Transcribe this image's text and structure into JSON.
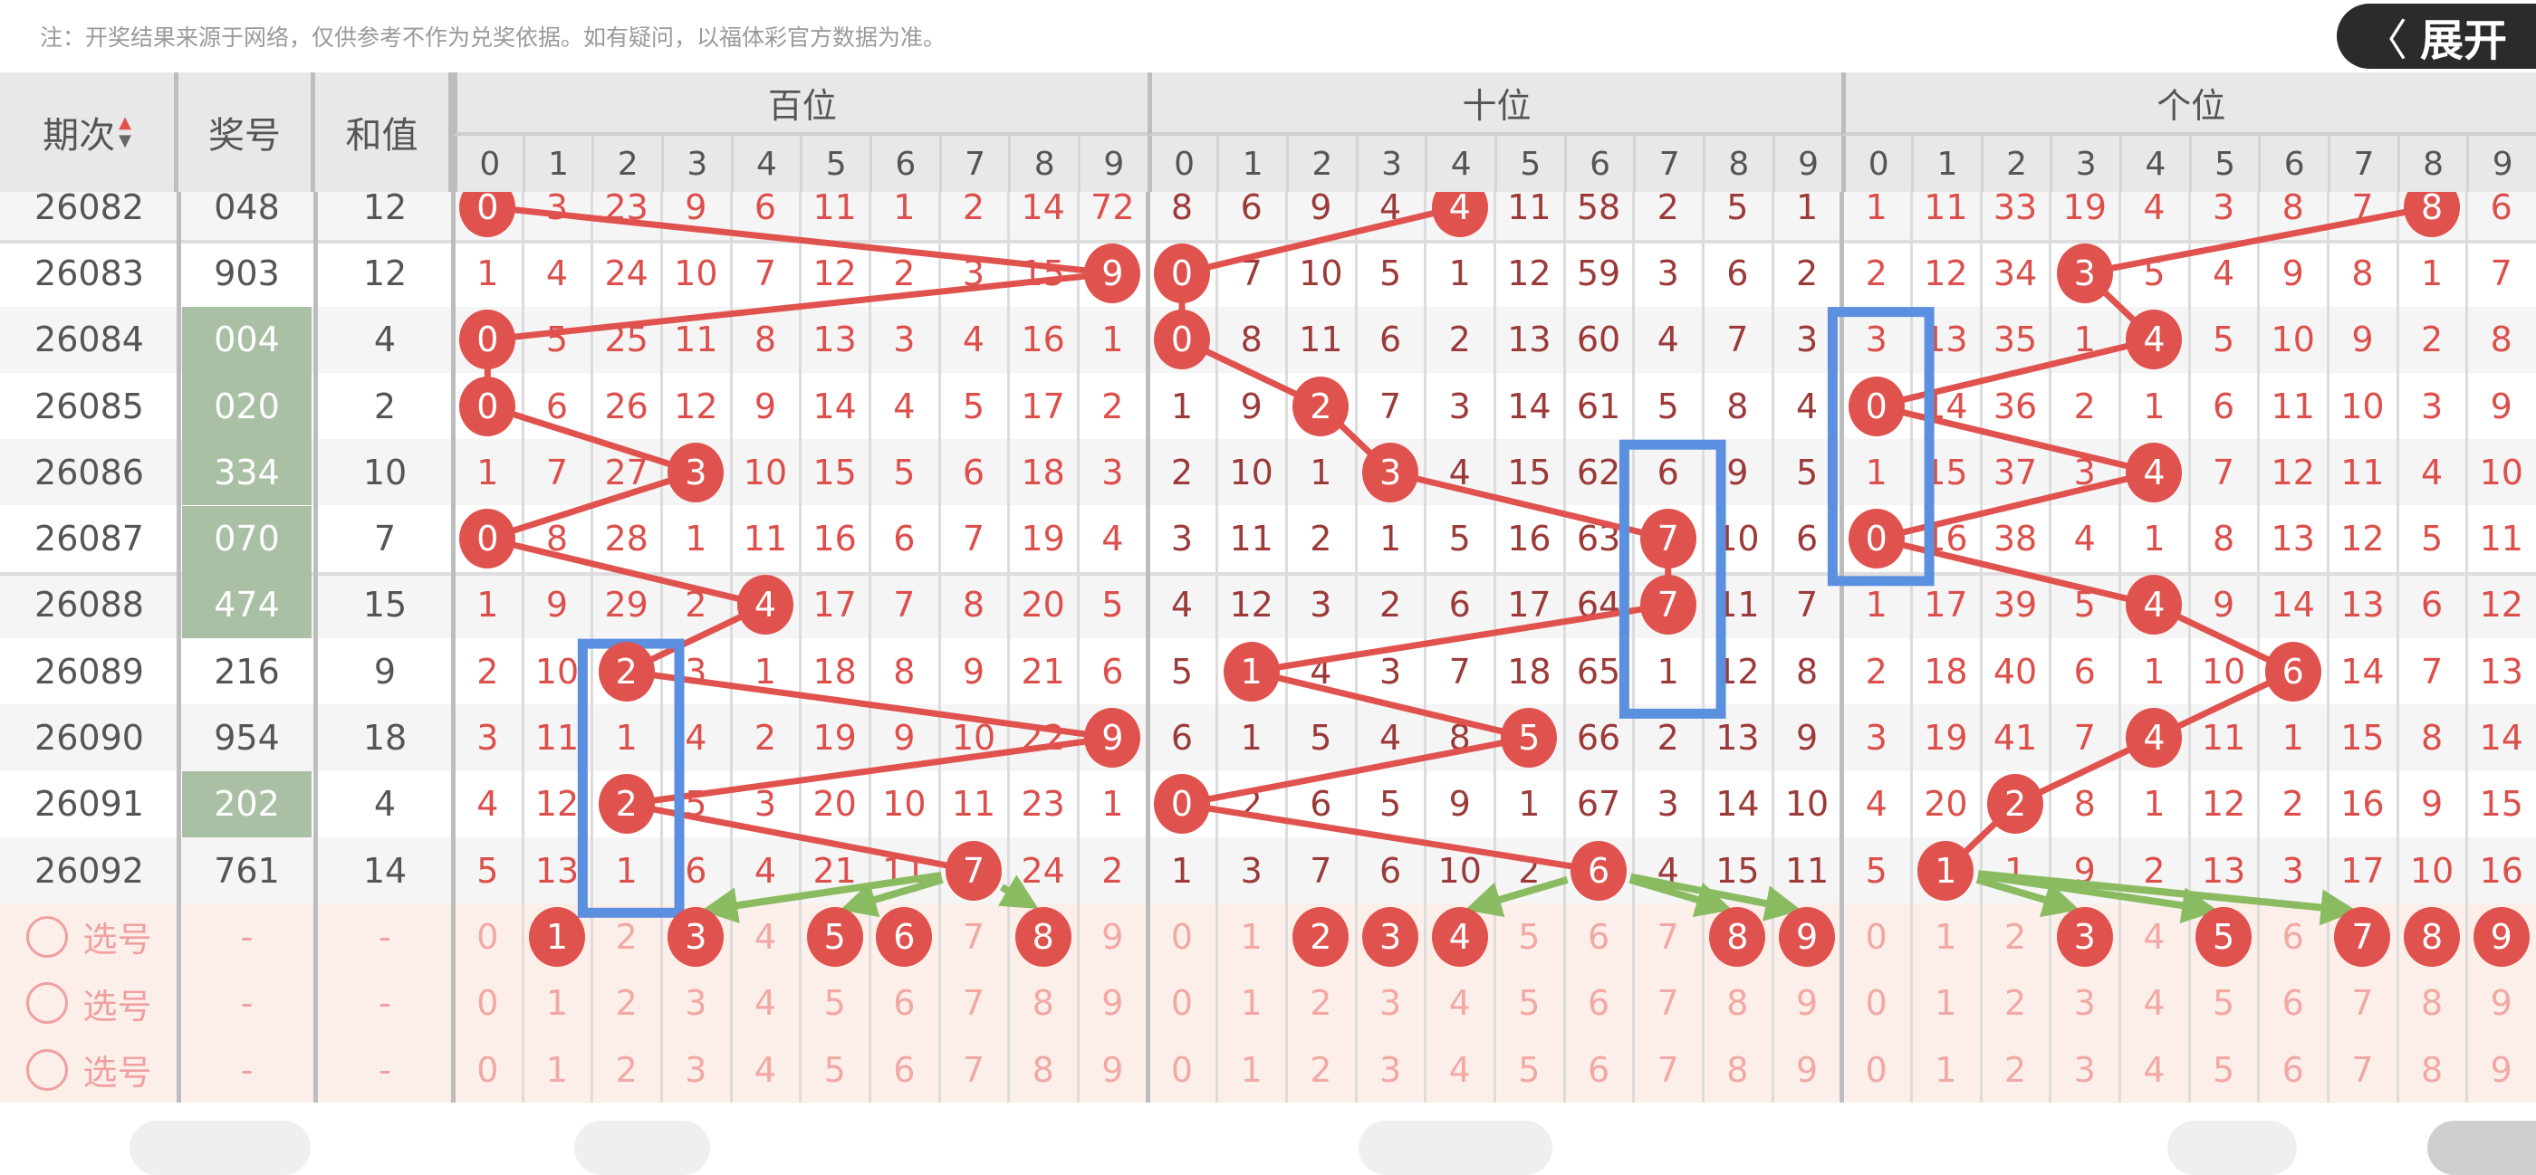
{
  "note": "注：开奖结果来源于网络，仅供参考不作为兑奖依据。如有疑问，以福体彩官方数据为准。",
  "header": {
    "issue": "期次",
    "number": "奖号",
    "sum": "和值",
    "sections": [
      "百位",
      "十位",
      "个位"
    ],
    "digits": [
      "0",
      "1",
      "2",
      "3",
      "4",
      "5",
      "6",
      "7",
      "8",
      "9"
    ],
    "sort_icon": "sort-up-down-icon"
  },
  "rows": [
    {
      "issue": "26082",
      "number": "048",
      "sum": "12",
      "group": false,
      "hundreds": [
        0,
        3,
        23,
        9,
        6,
        11,
        1,
        2,
        14,
        72
      ],
      "tens": [
        8,
        6,
        9,
        4,
        4,
        11,
        58,
        2,
        5,
        1
      ],
      "units": [
        1,
        11,
        33,
        19,
        4,
        3,
        8,
        7,
        8,
        6
      ]
    },
    {
      "issue": "26083",
      "number": "903",
      "sum": "12",
      "group": false,
      "hundreds": [
        1,
        4,
        24,
        10,
        7,
        12,
        2,
        3,
        15,
        9
      ],
      "tens": [
        0,
        7,
        10,
        5,
        1,
        12,
        59,
        3,
        6,
        2
      ],
      "units": [
        2,
        12,
        34,
        3,
        5,
        4,
        9,
        8,
        1,
        7
      ]
    },
    {
      "issue": "26084",
      "number": "004",
      "sum": "4",
      "group": true,
      "hundreds": [
        0,
        5,
        25,
        11,
        8,
        13,
        3,
        4,
        16,
        1
      ],
      "tens": [
        0,
        8,
        11,
        6,
        2,
        13,
        60,
        4,
        7,
        3
      ],
      "units": [
        3,
        13,
        35,
        1,
        4,
        5,
        10,
        9,
        2,
        8
      ]
    },
    {
      "issue": "26085",
      "number": "020",
      "sum": "2",
      "group": true,
      "hundreds": [
        0,
        6,
        26,
        12,
        9,
        14,
        4,
        5,
        17,
        2
      ],
      "tens": [
        1,
        9,
        2,
        7,
        3,
        14,
        61,
        5,
        8,
        4
      ],
      "units": [
        0,
        14,
        36,
        2,
        1,
        6,
        11,
        10,
        3,
        9
      ]
    },
    {
      "issue": "26086",
      "number": "334",
      "sum": "10",
      "group": true,
      "hundreds": [
        1,
        7,
        27,
        3,
        10,
        15,
        5,
        6,
        18,
        3
      ],
      "tens": [
        2,
        10,
        1,
        3,
        4,
        15,
        62,
        6,
        9,
        5
      ],
      "units": [
        1,
        15,
        37,
        3,
        4,
        7,
        12,
        11,
        4,
        10
      ]
    },
    {
      "issue": "26087",
      "number": "070",
      "sum": "7",
      "group": true,
      "hundreds": [
        0,
        8,
        28,
        1,
        11,
        16,
        6,
        7,
        19,
        4
      ],
      "tens": [
        3,
        11,
        2,
        1,
        5,
        16,
        63,
        7,
        10,
        6
      ],
      "units": [
        0,
        16,
        38,
        4,
        1,
        8,
        13,
        12,
        5,
        11
      ]
    },
    {
      "issue": "26088",
      "number": "474",
      "sum": "15",
      "group": true,
      "hundreds": [
        1,
        9,
        29,
        2,
        4,
        17,
        7,
        8,
        20,
        5
      ],
      "tens": [
        4,
        12,
        3,
        2,
        6,
        17,
        64,
        7,
        11,
        7
      ],
      "units": [
        1,
        17,
        39,
        5,
        4,
        9,
        14,
        13,
        6,
        12
      ]
    },
    {
      "issue": "26089",
      "number": "216",
      "sum": "9",
      "group": false,
      "hundreds": [
        2,
        10,
        2,
        3,
        1,
        18,
        8,
        9,
        21,
        6
      ],
      "tens": [
        5,
        1,
        4,
        3,
        7,
        18,
        65,
        1,
        12,
        8
      ],
      "units": [
        2,
        18,
        40,
        6,
        1,
        10,
        6,
        14,
        7,
        13
      ]
    },
    {
      "issue": "26090",
      "number": "954",
      "sum": "18",
      "group": false,
      "hundreds": [
        3,
        11,
        1,
        4,
        2,
        19,
        9,
        10,
        22,
        9
      ],
      "tens": [
        6,
        1,
        5,
        4,
        8,
        5,
        66,
        2,
        13,
        9
      ],
      "units": [
        3,
        19,
        41,
        7,
        4,
        11,
        1,
        15,
        8,
        14
      ]
    },
    {
      "issue": "26091",
      "number": "202",
      "sum": "4",
      "group": true,
      "hundreds": [
        4,
        12,
        2,
        5,
        3,
        20,
        10,
        11,
        23,
        1
      ],
      "tens": [
        0,
        2,
        6,
        5,
        9,
        1,
        67,
        3,
        14,
        10
      ],
      "units": [
        4,
        20,
        2,
        8,
        1,
        12,
        2,
        16,
        9,
        15
      ]
    },
    {
      "issue": "26092",
      "number": "761",
      "sum": "14",
      "group": false,
      "hundreds": [
        5,
        13,
        1,
        6,
        4,
        21,
        11,
        7,
        24,
        2
      ],
      "tens": [
        1,
        3,
        7,
        6,
        10,
        2,
        6,
        4,
        15,
        11
      ],
      "units": [
        5,
        1,
        1,
        9,
        2,
        13,
        3,
        17,
        10,
        16
      ]
    }
  ],
  "pick_rows": [
    {
      "label": "选号",
      "number": "-",
      "sum": "-",
      "selected": {
        "hundreds": [
          1,
          3,
          5,
          6,
          8
        ],
        "tens": [
          2,
          3,
          4,
          8,
          9
        ],
        "units": [
          3,
          5,
          7,
          8,
          9
        ]
      }
    },
    {
      "label": "选号",
      "number": "-",
      "sum": "-",
      "selected": {
        "hundreds": [],
        "tens": [],
        "units": []
      }
    },
    {
      "label": "选号",
      "number": "-",
      "sum": "-",
      "selected": {
        "hundreds": [],
        "tens": [],
        "units": []
      }
    }
  ],
  "highlight_boxes": [
    {
      "section": "hundreds",
      "digit": 2,
      "from_issue": "26089",
      "to_issue": "26092"
    },
    {
      "section": "tens",
      "digit": 7,
      "from_issue": "26086",
      "to_issue": "26089"
    },
    {
      "section": "units",
      "digit": 0,
      "from_issue": "26084",
      "to_issue": "26087"
    }
  ],
  "arrows": [
    {
      "section": "hundreds",
      "from": 7,
      "to": [
        3,
        5,
        8
      ]
    },
    {
      "section": "tens",
      "from": 6,
      "to": [
        4,
        8,
        9
      ]
    },
    {
      "section": "units",
      "from": 1,
      "to": [
        3,
        5,
        7
      ]
    }
  ],
  "expand_button": {
    "label": "展开",
    "icon": "chevron-left-icon"
  },
  "colors": {
    "hit": "#e0524e",
    "line": "#e0524e",
    "box": "#5b8fdf",
    "arrow": "#8bbb60",
    "group": "#a9c0a4",
    "pick_bg": "#fcefea",
    "expand_bg": "#2b2b2b"
  }
}
